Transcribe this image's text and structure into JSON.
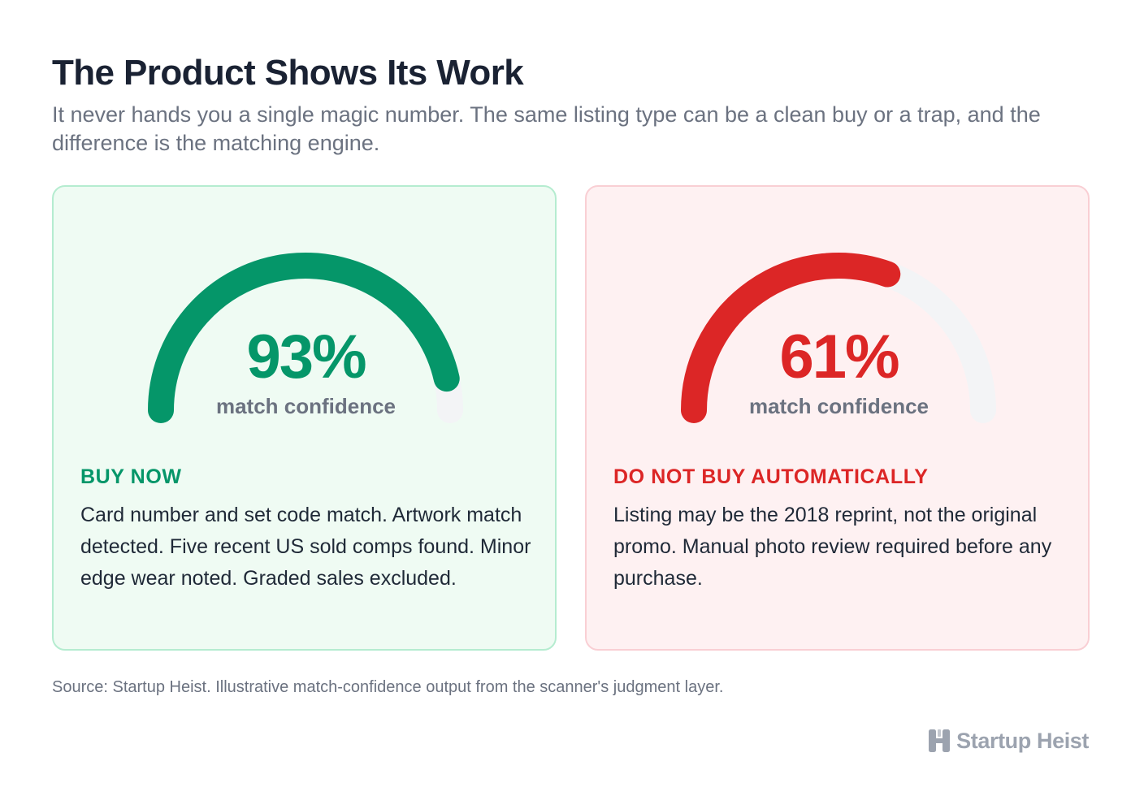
{
  "header": {
    "title": "The Product Shows Its Work",
    "subtitle": "It never hands you a single magic number. The same listing type can be a clean buy or a trap, and the difference is the matching engine."
  },
  "cards": [
    {
      "confidence": 93,
      "confidence_label": "93%",
      "gauge_label": "match confidence",
      "verdict": "BUY NOW",
      "body": "Card number and set code match. Artwork match detected. Five recent US sold comps found. Minor edge wear noted. Graded sales excluded.",
      "accent_color": "#059669",
      "background_color": "#effbf3",
      "border_color": "#b5ecd0"
    },
    {
      "confidence": 61,
      "confidence_label": "61%",
      "gauge_label": "match confidence",
      "verdict": "DO NOT BUY AUTOMATICALLY",
      "body": "Listing may be the 2018 reprint, not the original promo. Manual photo review required before any purchase.",
      "accent_color": "#dc2626",
      "background_color": "#fef1f2",
      "border_color": "#f9cfd4"
    }
  ],
  "gauge_track_color": "#f3f4f6",
  "footer": {
    "source": "Source: Startup Heist. Illustrative match-confidence output from the scanner's judgment layer.",
    "brand_name": "Startup Heist",
    "brand_icon": "startup-heist-logo-icon"
  }
}
